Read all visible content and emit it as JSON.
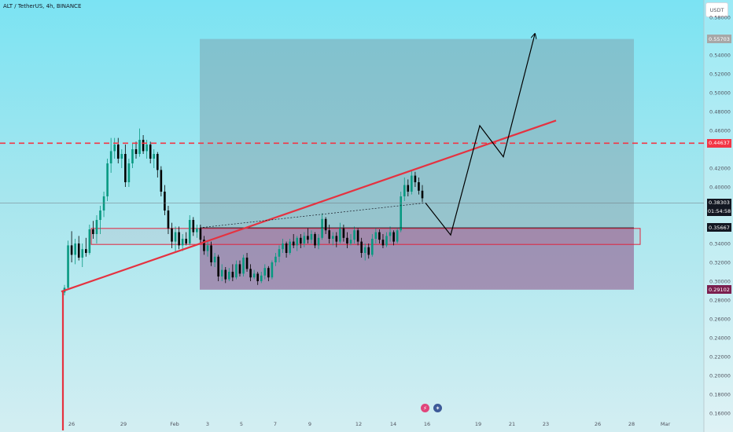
{
  "header": {
    "symbol": "ALT / TetherUS, 4h, BINANCE",
    "currency": "USDT"
  },
  "price_tags": {
    "top": {
      "price": "0.55703",
      "color": "#a7a7a7"
    },
    "resistance": {
      "price": "0.44637",
      "color": "#f23645"
    },
    "current": {
      "price": "0.38303",
      "timer": "01:54:58",
      "color": "#131722"
    },
    "entry": {
      "price": "0.35667",
      "color": "#131722"
    },
    "bottom": {
      "price": "0.29102",
      "color": "#7b1f4f"
    }
  },
  "icons": [
    {
      "name": "earnings-icon"
    },
    {
      "name": "us-flag-icon"
    }
  ],
  "chart_data": {
    "type": "candlestick",
    "y_ticks": [
      "0.58000",
      "0.54000",
      "0.52000",
      "0.50000",
      "0.48000",
      "0.46000",
      "0.42000",
      "0.40000",
      "0.34000",
      "0.32000",
      "0.30000",
      "0.28000",
      "0.26000",
      "0.24000",
      "0.22000",
      "0.20000",
      "0.18000",
      "0.16000"
    ],
    "x_labels": [
      "26",
      "29",
      "Feb",
      "3",
      "5",
      "7",
      "9",
      "12",
      "14",
      "16",
      "19",
      "21",
      "23",
      "26",
      "28",
      "Mar"
    ],
    "ylim": [
      0.155,
      0.585
    ],
    "candles": [
      [
        0.288,
        0.296,
        0.285,
        0.293
      ],
      [
        0.293,
        0.343,
        0.292,
        0.338
      ],
      [
        0.338,
        0.353,
        0.32,
        0.328
      ],
      [
        0.328,
        0.345,
        0.318,
        0.34
      ],
      [
        0.34,
        0.348,
        0.322,
        0.325
      ],
      [
        0.325,
        0.34,
        0.315,
        0.334
      ],
      [
        0.334,
        0.346,
        0.326,
        0.33
      ],
      [
        0.33,
        0.36,
        0.328,
        0.355
      ],
      [
        0.355,
        0.364,
        0.345,
        0.35
      ],
      [
        0.35,
        0.37,
        0.34,
        0.365
      ],
      [
        0.365,
        0.38,
        0.35,
        0.375
      ],
      [
        0.375,
        0.395,
        0.368,
        0.39
      ],
      [
        0.39,
        0.43,
        0.385,
        0.425
      ],
      [
        0.425,
        0.452,
        0.415,
        0.438
      ],
      [
        0.438,
        0.452,
        0.43,
        0.445
      ],
      [
        0.445,
        0.452,
        0.425,
        0.43
      ],
      [
        0.43,
        0.44,
        0.42,
        0.435
      ],
      [
        0.435,
        0.445,
        0.4,
        0.405
      ],
      [
        0.405,
        0.43,
        0.4,
        0.425
      ],
      [
        0.425,
        0.446,
        0.42,
        0.44
      ],
      [
        0.44,
        0.448,
        0.43,
        0.435
      ],
      [
        0.435,
        0.462,
        0.432,
        0.45
      ],
      [
        0.45,
        0.455,
        0.435,
        0.438
      ],
      [
        0.438,
        0.45,
        0.43,
        0.445
      ],
      [
        0.445,
        0.448,
        0.425,
        0.43
      ],
      [
        0.43,
        0.44,
        0.42,
        0.435
      ],
      [
        0.435,
        0.437,
        0.41,
        0.418
      ],
      [
        0.418,
        0.422,
        0.39,
        0.395
      ],
      [
        0.395,
        0.402,
        0.37,
        0.375
      ],
      [
        0.375,
        0.38,
        0.35,
        0.356
      ],
      [
        0.356,
        0.362,
        0.335,
        0.342
      ],
      [
        0.342,
        0.358,
        0.33,
        0.352
      ],
      [
        0.352,
        0.358,
        0.334,
        0.338
      ],
      [
        0.338,
        0.35,
        0.332,
        0.345
      ],
      [
        0.345,
        0.352,
        0.338,
        0.34
      ],
      [
        0.34,
        0.37,
        0.338,
        0.365
      ],
      [
        0.365,
        0.368,
        0.348,
        0.352
      ],
      [
        0.352,
        0.36,
        0.346,
        0.356
      ],
      [
        0.356,
        0.36,
        0.34,
        0.344
      ],
      [
        0.344,
        0.348,
        0.328,
        0.332
      ],
      [
        0.332,
        0.342,
        0.326,
        0.338
      ],
      [
        0.338,
        0.342,
        0.316,
        0.32
      ],
      [
        0.32,
        0.33,
        0.315,
        0.326
      ],
      [
        0.326,
        0.328,
        0.3,
        0.305
      ],
      [
        0.305,
        0.318,
        0.3,
        0.312
      ],
      [
        0.312,
        0.315,
        0.298,
        0.302
      ],
      [
        0.302,
        0.314,
        0.3,
        0.31
      ],
      [
        0.31,
        0.318,
        0.3,
        0.304
      ],
      [
        0.304,
        0.322,
        0.302,
        0.318
      ],
      [
        0.318,
        0.322,
        0.305,
        0.308
      ],
      [
        0.308,
        0.328,
        0.305,
        0.325
      ],
      [
        0.325,
        0.33,
        0.31,
        0.313
      ],
      [
        0.313,
        0.318,
        0.3,
        0.304
      ],
      [
        0.304,
        0.312,
        0.302,
        0.308
      ],
      [
        0.308,
        0.31,
        0.296,
        0.3
      ],
      [
        0.3,
        0.31,
        0.298,
        0.306
      ],
      [
        0.306,
        0.318,
        0.302,
        0.314
      ],
      [
        0.314,
        0.316,
        0.3,
        0.304
      ],
      [
        0.304,
        0.322,
        0.302,
        0.32
      ],
      [
        0.32,
        0.33,
        0.316,
        0.326
      ],
      [
        0.326,
        0.338,
        0.32,
        0.334
      ],
      [
        0.334,
        0.345,
        0.33,
        0.34
      ],
      [
        0.34,
        0.342,
        0.325,
        0.33
      ],
      [
        0.33,
        0.345,
        0.328,
        0.342
      ],
      [
        0.342,
        0.35,
        0.335,
        0.338
      ],
      [
        0.338,
        0.348,
        0.332,
        0.346
      ],
      [
        0.346,
        0.35,
        0.335,
        0.34
      ],
      [
        0.34,
        0.352,
        0.336,
        0.348
      ],
      [
        0.348,
        0.356,
        0.34,
        0.344
      ],
      [
        0.344,
        0.354,
        0.34,
        0.35
      ],
      [
        0.35,
        0.352,
        0.335,
        0.338
      ],
      [
        0.338,
        0.35,
        0.334,
        0.346
      ],
      [
        0.346,
        0.372,
        0.344,
        0.366
      ],
      [
        0.366,
        0.368,
        0.35,
        0.354
      ],
      [
        0.354,
        0.36,
        0.34,
        0.345
      ],
      [
        0.345,
        0.352,
        0.338,
        0.348
      ],
      [
        0.348,
        0.352,
        0.336,
        0.342
      ],
      [
        0.342,
        0.362,
        0.34,
        0.356
      ],
      [
        0.356,
        0.36,
        0.342,
        0.346
      ],
      [
        0.346,
        0.352,
        0.335,
        0.34
      ],
      [
        0.34,
        0.35,
        0.338,
        0.344
      ],
      [
        0.344,
        0.358,
        0.34,
        0.354
      ],
      [
        0.354,
        0.356,
        0.338,
        0.342
      ],
      [
        0.342,
        0.346,
        0.325,
        0.33
      ],
      [
        0.33,
        0.34,
        0.322,
        0.336
      ],
      [
        0.336,
        0.34,
        0.324,
        0.328
      ],
      [
        0.328,
        0.35,
        0.326,
        0.345
      ],
      [
        0.345,
        0.356,
        0.34,
        0.352
      ],
      [
        0.352,
        0.355,
        0.34,
        0.344
      ],
      [
        0.344,
        0.35,
        0.335,
        0.338
      ],
      [
        0.338,
        0.352,
        0.336,
        0.348
      ],
      [
        0.348,
        0.358,
        0.342,
        0.352
      ],
      [
        0.352,
        0.354,
        0.338,
        0.342
      ],
      [
        0.342,
        0.356,
        0.34,
        0.354
      ],
      [
        0.354,
        0.395,
        0.352,
        0.39
      ],
      [
        0.39,
        0.41,
        0.385,
        0.402
      ],
      [
        0.402,
        0.408,
        0.39,
        0.395
      ],
      [
        0.395,
        0.418,
        0.392,
        0.412
      ],
      [
        0.412,
        0.416,
        0.4,
        0.405
      ],
      [
        0.405,
        0.41,
        0.392,
        0.396
      ],
      [
        0.396,
        0.402,
        0.384,
        0.388
      ]
    ]
  }
}
